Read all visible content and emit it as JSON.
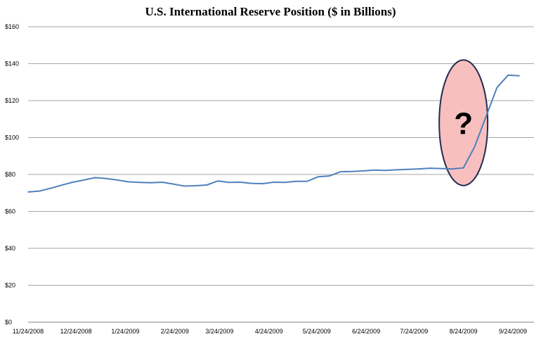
{
  "chart_data": {
    "type": "line",
    "title": "U.S. International Reserve Position ($ in Billions)",
    "xlabel": "",
    "ylabel": "",
    "ylim": [
      0,
      160
    ],
    "yticks": [
      "$0",
      "$20",
      "$40",
      "$60",
      "$80",
      "$100",
      "$120",
      "$140",
      "$160"
    ],
    "xticks": [
      "11/24/2008",
      "12/24/2008",
      "1/24/2009",
      "2/24/2009",
      "3/24/2009",
      "4/24/2009",
      "5/24/2009",
      "6/24/2009",
      "7/24/2009",
      "8/24/2009",
      "9/24/2009"
    ],
    "grid": "horizontal",
    "legend": "none",
    "series": [
      {
        "color": "#4f81bd",
        "x": [
          "11/24/2008",
          "12/1/2008",
          "12/8/2008",
          "12/15/2008",
          "12/22/2008",
          "12/29/2008",
          "1/5/2009",
          "1/12/2009",
          "1/19/2009",
          "1/26/2009",
          "2/2/2009",
          "2/9/2009",
          "2/16/2009",
          "2/23/2009",
          "3/2/2009",
          "3/9/2009",
          "3/16/2009",
          "3/23/2009",
          "3/30/2009",
          "4/6/2009",
          "4/13/2009",
          "4/20/2009",
          "4/27/2009",
          "5/4/2009",
          "5/11/2009",
          "5/18/2009",
          "5/25/2009",
          "6/1/2009",
          "6/8/2009",
          "6/15/2009",
          "6/22/2009",
          "6/29/2009",
          "7/6/2009",
          "7/13/2009",
          "7/20/2009",
          "7/27/2009",
          "8/3/2009",
          "8/10/2009",
          "8/17/2009",
          "8/24/2009",
          "8/31/2009",
          "9/7/2009",
          "9/14/2009",
          "9/21/2009",
          "9/28/2009"
        ],
        "values": [
          70.5,
          71,
          72.5,
          74.2,
          75.8,
          77,
          78.3,
          77.8,
          77,
          76,
          75.7,
          75.5,
          75.8,
          74.8,
          73.7,
          73.9,
          74.3,
          76.5,
          75.7,
          75.8,
          75.2,
          75,
          75.8,
          75.7,
          76.3,
          76.3,
          78.8,
          79.2,
          81.5,
          81.6,
          81.9,
          82.4,
          82.2,
          82.5,
          82.8,
          83,
          83.4,
          83.2,
          83,
          83.6,
          95,
          111,
          127,
          133.8,
          133.4
        ]
      }
    ],
    "annotation": {
      "symbol": "?",
      "fill": "#f8bfbf",
      "stroke": "#1f2d4d",
      "center_date": "8/24/2009",
      "center_value": 108,
      "radius_days": 15.2,
      "radius_value": 34
    }
  }
}
